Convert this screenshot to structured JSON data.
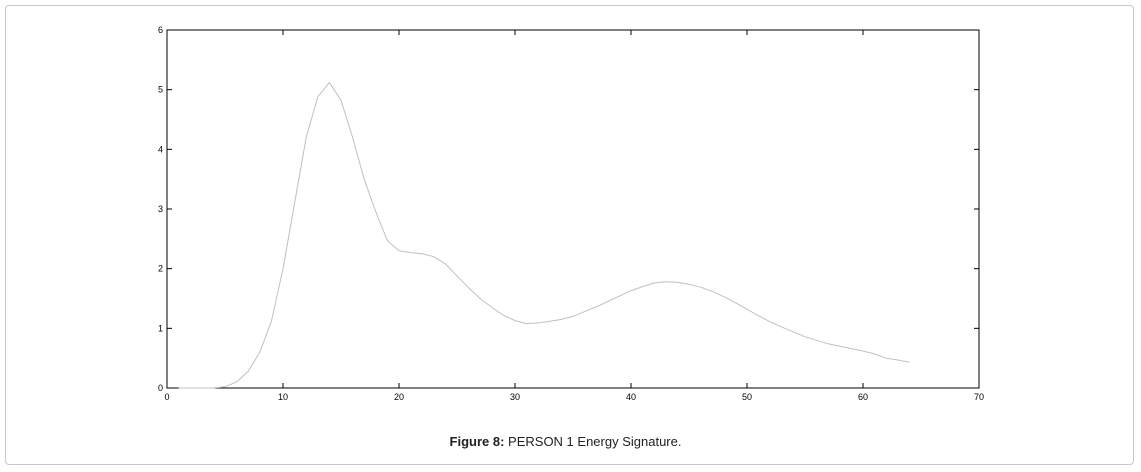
{
  "caption": {
    "label": "Figure 8:",
    "text": " PERSON 1 Energy Signature."
  },
  "chart_data": {
    "type": "line",
    "title": "",
    "xlabel": "",
    "ylabel": "",
    "xlim": [
      0,
      70
    ],
    "ylim": [
      0,
      6
    ],
    "xticks": [
      "0",
      "10",
      "20",
      "30",
      "40",
      "50",
      "60",
      "70"
    ],
    "yticks": [
      "0",
      "1",
      "2",
      "3",
      "4",
      "5",
      "6"
    ],
    "grid": false,
    "line_color": "#c0c0c0",
    "series": [
      {
        "x": [
          1,
          2,
          3,
          4,
          5,
          6,
          7,
          8,
          9,
          10,
          11,
          12,
          13,
          14,
          15,
          16,
          17,
          18,
          19,
          20,
          21,
          22,
          23,
          24,
          25,
          26,
          27,
          28,
          29,
          30,
          31,
          32,
          33,
          34,
          35,
          36,
          37,
          38,
          39,
          40,
          41,
          42,
          43,
          44,
          45,
          46,
          47,
          48,
          49,
          50,
          51,
          52,
          53,
          54,
          55,
          56,
          57,
          58,
          59,
          60,
          61,
          62,
          63,
          64
        ],
        "y": [
          0,
          0,
          0,
          0,
          0.02,
          0.1,
          0.28,
          0.6,
          1.12,
          2.0,
          3.1,
          4.2,
          4.88,
          5.12,
          4.82,
          4.2,
          3.5,
          2.95,
          2.47,
          2.3,
          2.27,
          2.25,
          2.2,
          2.08,
          1.88,
          1.68,
          1.5,
          1.35,
          1.22,
          1.13,
          1.08,
          1.09,
          1.12,
          1.15,
          1.2,
          1.28,
          1.36,
          1.45,
          1.54,
          1.63,
          1.7,
          1.76,
          1.78,
          1.77,
          1.74,
          1.69,
          1.62,
          1.53,
          1.43,
          1.32,
          1.21,
          1.11,
          1.02,
          0.94,
          0.86,
          0.8,
          0.74,
          0.7,
          0.66,
          0.62,
          0.57,
          0.5,
          0.47,
          0.43
        ]
      }
    ]
  }
}
